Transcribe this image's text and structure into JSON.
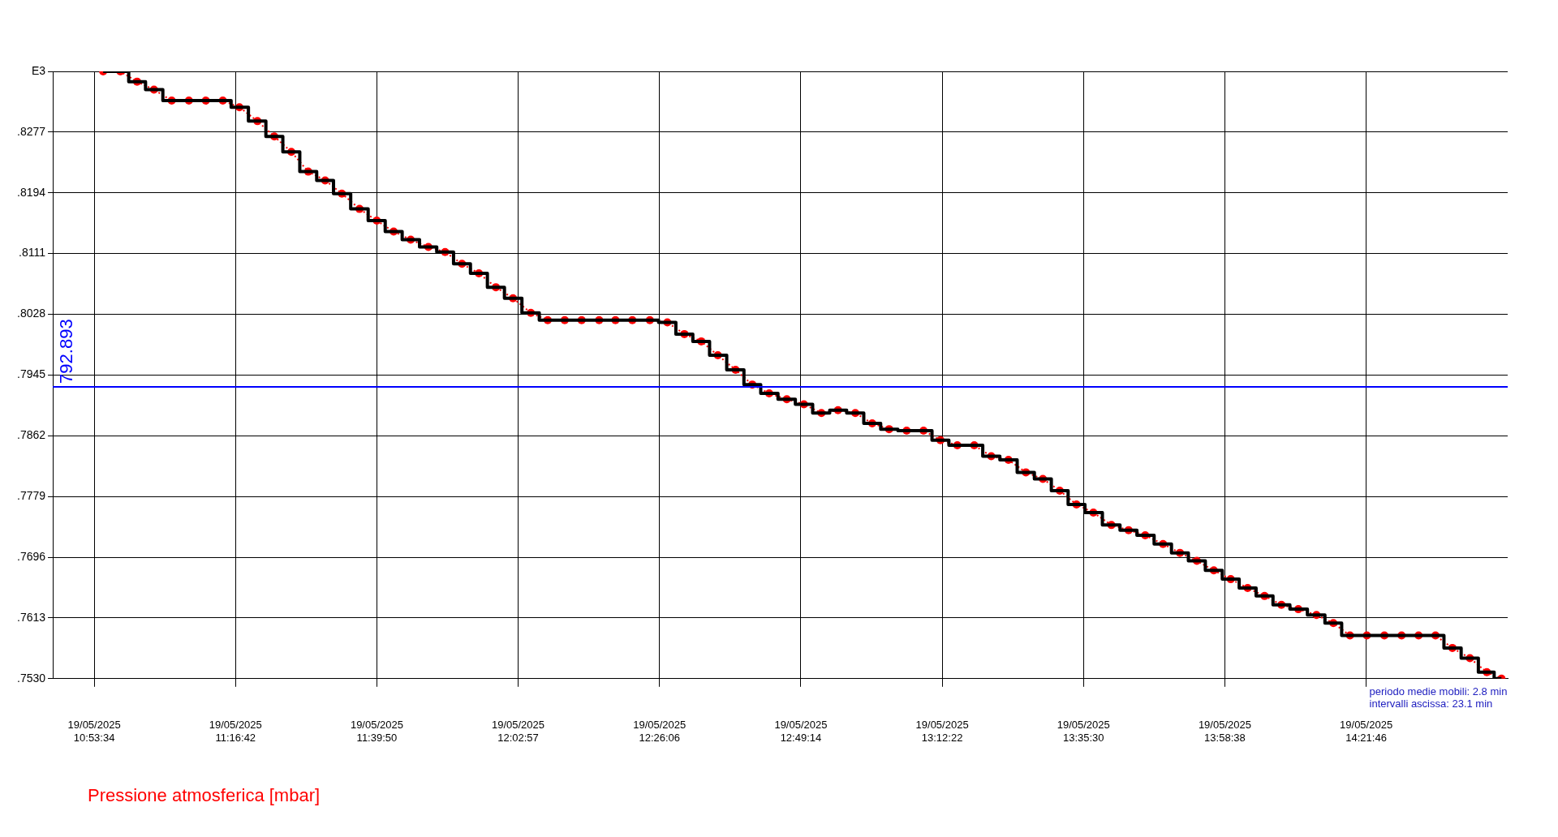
{
  "chart_data": {
    "type": "line",
    "x": [
      "2025-05-19T10:55:02",
      "2025-05-19T10:57:51",
      "2025-05-19T11:00:35",
      "2025-05-19T11:03:21",
      "2025-05-19T11:06:15",
      "2025-05-19T11:09:04",
      "2025-05-19T11:11:50",
      "2025-05-19T11:14:37",
      "2025-05-19T11:17:20",
      "2025-05-19T11:20:17",
      "2025-05-19T11:23:03",
      "2025-05-19T11:25:50",
      "2025-05-19T11:28:36",
      "2025-05-19T11:31:22",
      "2025-05-19T11:34:06",
      "2025-05-19T11:37:00",
      "2025-05-19T11:39:49",
      "2025-05-19T11:42:35",
      "2025-05-19T11:45:22",
      "2025-05-19T11:48:16",
      "2025-05-19T11:51:00",
      "2025-05-19T11:53:46",
      "2025-05-19T11:56:32",
      "2025-05-19T11:59:19",
      "2025-05-19T12:02:07",
      "2025-05-19T12:05:02",
      "2025-05-19T12:07:48",
      "2025-05-19T12:10:35",
      "2025-05-19T12:13:21",
      "2025-05-19T12:16:13",
      "2025-05-19T12:18:53",
      "2025-05-19T12:21:39",
      "2025-05-19T12:24:31",
      "2025-05-19T12:27:23",
      "2025-05-19T12:30:10",
      "2025-05-19T12:32:56",
      "2025-05-19T12:35:39",
      "2025-05-19T12:38:33",
      "2025-05-19T12:41:17",
      "2025-05-19T12:44:03",
      "2025-05-19T12:46:56",
      "2025-05-19T12:49:44",
      "2025-05-19T12:52:36",
      "2025-05-19T12:55:19",
      "2025-05-19T12:58:09",
      "2025-05-19T13:00:55",
      "2025-05-19T13:03:41",
      "2025-05-19T13:06:33",
      "2025-05-19T13:09:19",
      "2025-05-19T13:12:05",
      "2025-05-19T13:14:51",
      "2025-05-19T13:17:37",
      "2025-05-19T13:20:24",
      "2025-05-19T13:23:13",
      "2025-05-19T13:26:04",
      "2025-05-19T13:28:51",
      "2025-05-19T13:31:37",
      "2025-05-19T13:34:21",
      "2025-05-19T13:37:07",
      "2025-05-19T13:40:04",
      "2025-05-19T13:42:53",
      "2025-05-19T13:45:36",
      "2025-05-19T13:48:31",
      "2025-05-19T13:51:17",
      "2025-05-19T13:54:03",
      "2025-05-19T13:56:50",
      "2025-05-19T13:59:36",
      "2025-05-19T14:02:22",
      "2025-05-19T14:05:08",
      "2025-05-19T14:07:54",
      "2025-05-19T14:10:40",
      "2025-05-19T14:13:38",
      "2025-05-19T14:16:24",
      "2025-05-19T14:19:07",
      "2025-05-19T14:21:53",
      "2025-05-19T14:24:45",
      "2025-05-19T14:27:34",
      "2025-05-19T14:30:21",
      "2025-05-19T14:33:07",
      "2025-05-19T14:35:53",
      "2025-05-19T14:38:45",
      "2025-05-19T14:41:31",
      "2025-05-19T14:43:55"
    ],
    "series": [
      {
        "type": "step",
        "color": "#000000",
        "marker": "none",
        "line_style": "solid",
        "values": [
          0.836,
          0.836,
          0.8346,
          0.8335,
          0.832,
          0.832,
          0.832,
          0.832,
          0.8311,
          0.8292,
          0.8271,
          0.825,
          0.8223,
          0.8211,
          0.8193,
          0.8172,
          0.8156,
          0.8141,
          0.813,
          0.812,
          0.8113,
          0.8097,
          0.8084,
          0.8065,
          0.805,
          0.803,
          0.802,
          0.802,
          0.802,
          0.802,
          0.802,
          0.802,
          0.802,
          0.8017,
          0.8001,
          0.7991,
          0.7972,
          0.7952,
          0.7932,
          0.792,
          0.7912,
          0.7905,
          0.7893,
          0.7897,
          0.7893,
          0.7879,
          0.7871,
          0.7869,
          0.7869,
          0.7856,
          0.7849,
          0.7849,
          0.7834,
          0.7829,
          0.7812,
          0.7803,
          0.7787,
          0.7768,
          0.7757,
          0.774,
          0.7733,
          0.7726,
          0.7714,
          0.7702,
          0.7691,
          0.7678,
          0.7666,
          0.7654,
          0.7643,
          0.7631,
          0.7625,
          0.7617,
          0.7606,
          0.7589,
          0.7589,
          0.7589,
          0.7589,
          0.7589,
          0.7589,
          0.7572,
          0.7558,
          0.7539,
          0.753
        ]
      },
      {
        "name": "Pressione atmosferica [mbar]",
        "color": "#ff0000",
        "marker": "circle",
        "line_style": "dotted",
        "values": [
          0.836,
          0.836,
          0.8346,
          0.8335,
          0.832,
          0.832,
          0.832,
          0.832,
          0.8311,
          0.8292,
          0.8271,
          0.825,
          0.8223,
          0.8211,
          0.8193,
          0.8172,
          0.8156,
          0.8141,
          0.813,
          0.812,
          0.8113,
          0.8097,
          0.8084,
          0.8065,
          0.805,
          0.803,
          0.802,
          0.802,
          0.802,
          0.802,
          0.802,
          0.802,
          0.802,
          0.8017,
          0.8001,
          0.7991,
          0.7972,
          0.7952,
          0.7932,
          0.792,
          0.7912,
          0.7905,
          0.7893,
          0.7897,
          0.7893,
          0.7879,
          0.7871,
          0.7869,
          0.7869,
          0.7856,
          0.7849,
          0.7849,
          0.7834,
          0.7829,
          0.7812,
          0.7803,
          0.7787,
          0.7768,
          0.7757,
          0.774,
          0.7733,
          0.7726,
          0.7714,
          0.7702,
          0.7691,
          0.7678,
          0.7666,
          0.7654,
          0.7643,
          0.7631,
          0.7625,
          0.7617,
          0.7606,
          0.7589,
          0.7589,
          0.7589,
          0.7589,
          0.7589,
          0.7589,
          0.7572,
          0.7558,
          0.7539,
          0.753
        ]
      }
    ],
    "xlim": [
      "2025-05-19T10:46:47",
      "2025-05-19T14:44:56"
    ],
    "xticks": [
      {
        "value": "2025-05-19T10:53:34",
        "label": "19/05/2025\n10:53:34"
      },
      {
        "value": "2025-05-19T11:16:42",
        "label": "19/05/2025\n11:16:42"
      },
      {
        "value": "2025-05-19T11:39:50",
        "label": "19/05/2025\n11:39:50"
      },
      {
        "value": "2025-05-19T12:02:57",
        "label": "19/05/2025\n12:02:57"
      },
      {
        "value": "2025-05-19T12:26:06",
        "label": "19/05/2025\n12:26:06"
      },
      {
        "value": "2025-05-19T12:49:14",
        "label": "19/05/2025\n12:49:14"
      },
      {
        "value": "2025-05-19T13:12:22",
        "label": "19/05/2025\n13:12:22"
      },
      {
        "value": "2025-05-19T13:35:30",
        "label": "19/05/2025\n13:35:30"
      },
      {
        "value": "2025-05-19T13:58:38",
        "label": "19/05/2025\n13:58:38"
      },
      {
        "value": "2025-05-19T14:21:46",
        "label": "19/05/2025\n14:21:46"
      }
    ],
    "ylim": [
      0.753,
      0.836
    ],
    "yticks": [
      {
        "value": 0.753,
        "label": ".7530"
      },
      {
        "value": 0.7613,
        "label": ".7613"
      },
      {
        "value": 0.7696,
        "label": ".7696"
      },
      {
        "value": 0.7779,
        "label": ".7779"
      },
      {
        "value": 0.7862,
        "label": ".7862"
      },
      {
        "value": 0.7945,
        "label": ".7945"
      },
      {
        "value": 0.8028,
        "label": ".8028"
      },
      {
        "value": 0.8111,
        "label": ".8111"
      },
      {
        "value": 0.8194,
        "label": ".8194"
      },
      {
        "value": 0.8277,
        "label": ".8277"
      },
      {
        "value": 0.836,
        "label": "E3"
      }
    ],
    "ref_lines": [
      {
        "axis": "y",
        "value": 0.792893,
        "label": "792.893",
        "color": "#0000ff",
        "line_style": "solid"
      }
    ],
    "annotations": [
      "periodo medie mobili: 2.8 min",
      "intervalli ascissa: 23.1 min"
    ],
    "grid": true,
    "legend": "bottom left"
  }
}
